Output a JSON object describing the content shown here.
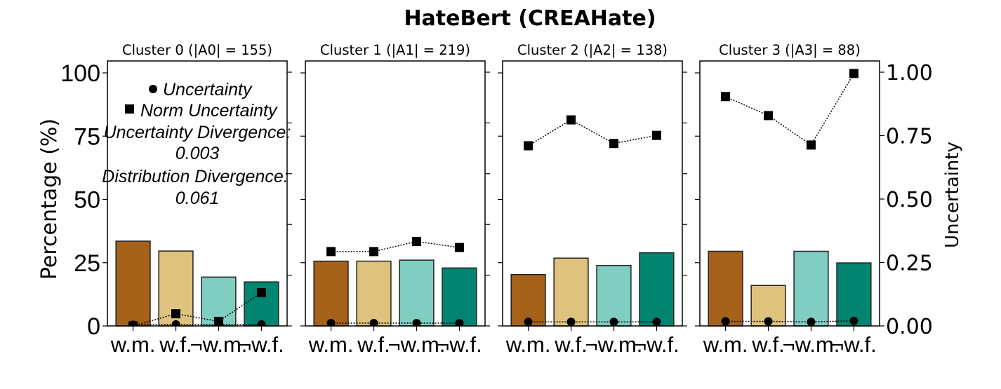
{
  "chart_data": {
    "type": "bar",
    "title": "HateBert (CREAHate)",
    "ylabel": "Percentage (%)",
    "ylabel_right": "Uncertainty",
    "ylim": [
      0,
      100
    ],
    "ylim_right": [
      0,
      1.0
    ],
    "yticks": [
      "0",
      "25",
      "50",
      "75",
      "100"
    ],
    "yticks_right": [
      "0.00",
      "0.25",
      "0.50",
      "0.75",
      "1.00"
    ],
    "categories": [
      "w.m.",
      "w.f.",
      "¬w.m.",
      "¬w.f."
    ],
    "colors": [
      "#a6611a",
      "#dfc27d",
      "#80cdc1",
      "#018571"
    ],
    "grid": false,
    "legend": {
      "placement": "top-left panel",
      "entries": [
        {
          "marker": "circle",
          "label": "Uncertainty"
        },
        {
          "marker": "square",
          "label": "Norm Uncertainty"
        }
      ],
      "annotations": [
        "Uncertainty Divergence:",
        "0.003",
        "Distribution Divergence:",
        "0.061"
      ]
    },
    "panels": [
      {
        "title": "Cluster 0 (|A0| = 155)",
        "percentages": [
          33.5,
          29.6,
          19.3,
          17.4
        ],
        "uncertainty": [
          0.005,
          0.006,
          0.006,
          0.006
        ],
        "norm_uncertainty": [
          0.0,
          0.048,
          0.018,
          0.131
        ]
      },
      {
        "title": "Cluster 1 (|A1| = 219)",
        "percentages": [
          25.6,
          25.6,
          26.0,
          22.9
        ],
        "uncertainty": [
          0.011,
          0.011,
          0.011,
          0.011
        ],
        "norm_uncertainty": [
          0.293,
          0.293,
          0.333,
          0.309
        ]
      },
      {
        "title": "Cluster 2 (|A2| = 138)",
        "percentages": [
          20.3,
          26.8,
          23.9,
          28.9
        ],
        "uncertainty": [
          0.016,
          0.016,
          0.016,
          0.016
        ],
        "norm_uncertainty": [
          0.71,
          0.812,
          0.719,
          0.751
        ]
      },
      {
        "title": "Cluster 3 (|A3| = 88)",
        "percentages": [
          29.5,
          16.0,
          29.5,
          24.9
        ],
        "uncertainty": [
          0.018,
          0.018,
          0.016,
          0.02
        ],
        "norm_uncertainty": [
          0.904,
          0.829,
          0.713,
          0.995
        ]
      }
    ]
  }
}
